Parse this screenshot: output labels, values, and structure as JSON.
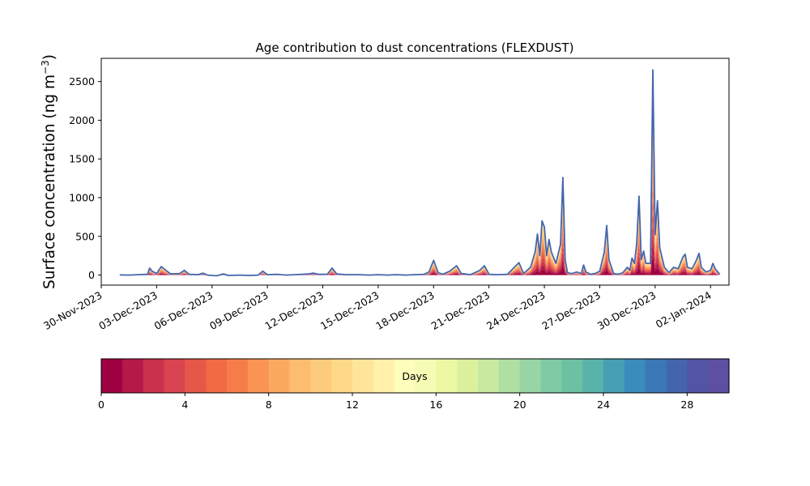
{
  "chart_data": {
    "type": "area",
    "title": "Age contribution to dust concentrations (FLEXDUST)",
    "ylabel": "Surface concentration (ng m",
    "ylabel_exp": "−3",
    "ylabel_close": ")",
    "xlabel": "",
    "ylim": [
      -130,
      2800
    ],
    "y_ticks": [
      0,
      500,
      1000,
      1500,
      2000,
      2500
    ],
    "x_range": [
      "2023-11-30T00:00",
      "2024-01-03T00:00"
    ],
    "x_ticks": [
      {
        "date": "2023-11-30",
        "label": "30-Nov-2023"
      },
      {
        "date": "2023-12-03",
        "label": "03-Dec-2023"
      },
      {
        "date": "2023-12-06",
        "label": "06-Dec-2023"
      },
      {
        "date": "2023-12-09",
        "label": "09-Dec-2023"
      },
      {
        "date": "2023-12-12",
        "label": "12-Dec-2023"
      },
      {
        "date": "2023-12-15",
        "label": "15-Dec-2023"
      },
      {
        "date": "2023-12-18",
        "label": "18-Dec-2023"
      },
      {
        "date": "2023-12-21",
        "label": "21-Dec-2023"
      },
      {
        "date": "2023-12-24",
        "label": "24-Dec-2023"
      },
      {
        "date": "2023-12-27",
        "label": "27-Dec-2023"
      },
      {
        "date": "2023-12-30",
        "label": "30-Dec-2023"
      },
      {
        "date": "2024-01-02",
        "label": "02-Jan-2024"
      }
    ],
    "total": [
      [
        "2023-12-01T00:00",
        2
      ],
      [
        "2023-12-01T12:00",
        0
      ],
      [
        "2023-12-02T00:00",
        5
      ],
      [
        "2023-12-02T12:00",
        10
      ],
      [
        "2023-12-02T15:00",
        90
      ],
      [
        "2023-12-02T18:00",
        50
      ],
      [
        "2023-12-03T00:00",
        20
      ],
      [
        "2023-12-03T06:00",
        110
      ],
      [
        "2023-12-03T12:00",
        60
      ],
      [
        "2023-12-03T18:00",
        15
      ],
      [
        "2023-12-04T06:00",
        20
      ],
      [
        "2023-12-04T12:00",
        60
      ],
      [
        "2023-12-04T18:00",
        10
      ],
      [
        "2023-12-05T06:00",
        5
      ],
      [
        "2023-12-05T12:00",
        25
      ],
      [
        "2023-12-05T18:00",
        0
      ],
      [
        "2023-12-06T06:00",
        -10
      ],
      [
        "2023-12-06T15:00",
        15
      ],
      [
        "2023-12-06T21:00",
        -5
      ],
      [
        "2023-12-07T12:00",
        0
      ],
      [
        "2023-12-08T00:00",
        -5
      ],
      [
        "2023-12-08T12:00",
        0
      ],
      [
        "2023-12-08T18:00",
        50
      ],
      [
        "2023-12-09T00:00",
        5
      ],
      [
        "2023-12-09T12:00",
        10
      ],
      [
        "2023-12-10T00:00",
        0
      ],
      [
        "2023-12-10T12:00",
        5
      ],
      [
        "2023-12-11T06:00",
        15
      ],
      [
        "2023-12-11T12:00",
        25
      ],
      [
        "2023-12-11T18:00",
        10
      ],
      [
        "2023-12-12T06:00",
        10
      ],
      [
        "2023-12-12T12:00",
        90
      ],
      [
        "2023-12-12T18:00",
        15
      ],
      [
        "2023-12-13T06:00",
        5
      ],
      [
        "2023-12-14T00:00",
        5
      ],
      [
        "2023-12-14T12:00",
        0
      ],
      [
        "2023-12-15T00:00",
        5
      ],
      [
        "2023-12-15T12:00",
        0
      ],
      [
        "2023-12-16T00:00",
        5
      ],
      [
        "2023-12-16T12:00",
        0
      ],
      [
        "2023-12-17T00:00",
        5
      ],
      [
        "2023-12-17T12:00",
        10
      ],
      [
        "2023-12-17T18:00",
        40
      ],
      [
        "2023-12-18T00:00",
        190
      ],
      [
        "2023-12-18T06:00",
        30
      ],
      [
        "2023-12-18T12:00",
        10
      ],
      [
        "2023-12-18T21:00",
        50
      ],
      [
        "2023-12-19T06:00",
        120
      ],
      [
        "2023-12-19T12:00",
        20
      ],
      [
        "2023-12-20T00:00",
        5
      ],
      [
        "2023-12-20T12:00",
        60
      ],
      [
        "2023-12-20T18:00",
        120
      ],
      [
        "2023-12-21T00:00",
        10
      ],
      [
        "2023-12-21T12:00",
        5
      ],
      [
        "2023-12-22T00:00",
        10
      ],
      [
        "2023-12-22T09:00",
        100
      ],
      [
        "2023-12-22T15:00",
        160
      ],
      [
        "2023-12-22T21:00",
        20
      ],
      [
        "2023-12-23T06:00",
        100
      ],
      [
        "2023-12-23T12:00",
        300
      ],
      [
        "2023-12-23T15:00",
        530
      ],
      [
        "2023-12-23T18:00",
        250
      ],
      [
        "2023-12-23T21:00",
        700
      ],
      [
        "2023-12-24T00:00",
        620
      ],
      [
        "2023-12-24T03:00",
        250
      ],
      [
        "2023-12-24T06:00",
        460
      ],
      [
        "2023-12-24T09:00",
        300
      ],
      [
        "2023-12-24T15:00",
        150
      ],
      [
        "2023-12-24T21:00",
        400
      ],
      [
        "2023-12-25T00:00",
        1260
      ],
      [
        "2023-12-25T03:00",
        200
      ],
      [
        "2023-12-25T06:00",
        30
      ],
      [
        "2023-12-25T12:00",
        20
      ],
      [
        "2023-12-25T18:00",
        40
      ],
      [
        "2023-12-26T00:00",
        20
      ],
      [
        "2023-12-26T03:00",
        130
      ],
      [
        "2023-12-26T06:00",
        40
      ],
      [
        "2023-12-26T12:00",
        10
      ],
      [
        "2023-12-26T18:00",
        20
      ],
      [
        "2023-12-27T00:00",
        50
      ],
      [
        "2023-12-27T06:00",
        300
      ],
      [
        "2023-12-27T09:00",
        640
      ],
      [
        "2023-12-27T12:00",
        200
      ],
      [
        "2023-12-27T18:00",
        20
      ],
      [
        "2023-12-28T00:00",
        10
      ],
      [
        "2023-12-28T06:00",
        30
      ],
      [
        "2023-12-28T12:00",
        100
      ],
      [
        "2023-12-28T15:00",
        60
      ],
      [
        "2023-12-28T18:00",
        220
      ],
      [
        "2023-12-28T21:00",
        150
      ],
      [
        "2023-12-29T00:00",
        400
      ],
      [
        "2023-12-29T03:00",
        1020
      ],
      [
        "2023-12-29T06:00",
        200
      ],
      [
        "2023-12-29T09:00",
        310
      ],
      [
        "2023-12-29T12:00",
        150
      ],
      [
        "2023-12-29T18:00",
        150
      ],
      [
        "2023-12-29T21:00",
        2650
      ],
      [
        "2023-12-30T00:00",
        520
      ],
      [
        "2023-12-30T03:00",
        960
      ],
      [
        "2023-12-30T06:00",
        350
      ],
      [
        "2023-12-30T12:00",
        100
      ],
      [
        "2023-12-30T18:00",
        30
      ],
      [
        "2023-12-31T00:00",
        100
      ],
      [
        "2023-12-31T06:00",
        80
      ],
      [
        "2023-12-31T12:00",
        230
      ],
      [
        "2023-12-31T15:00",
        270
      ],
      [
        "2023-12-31T18:00",
        100
      ],
      [
        "2024-01-01T00:00",
        80
      ],
      [
        "2024-01-01T06:00",
        200
      ],
      [
        "2024-01-01T09:00",
        280
      ],
      [
        "2024-01-01T12:00",
        100
      ],
      [
        "2024-01-01T18:00",
        40
      ],
      [
        "2024-01-02T00:00",
        60
      ],
      [
        "2024-01-02T03:00",
        150
      ],
      [
        "2024-01-02T06:00",
        80
      ],
      [
        "2024-01-02T12:00",
        10
      ]
    ]
  },
  "colorbar": {
    "label": "Days",
    "range": [
      0,
      30
    ],
    "ticks": [
      0,
      4,
      8,
      12,
      16,
      20,
      24,
      28
    ],
    "colors": [
      "#9e0142",
      "#b41947",
      "#c9314c",
      "#d84450",
      "#e55749",
      "#f06a44",
      "#f67d4a",
      "#f99455",
      "#fca960",
      "#fdbd6f",
      "#fdcb7c",
      "#fed98a",
      "#fee59a",
      "#fff0ab",
      "#fffdbc",
      "#f6fbb3",
      "#edf8a4",
      "#dbf19e",
      "#c8e99f",
      "#b0dfa2",
      "#98d5a5",
      "#80cba5",
      "#6cc1a4",
      "#59b3ab",
      "#479fb3",
      "#3a8cbc",
      "#3b78b7",
      "#4465ad",
      "#5255a4",
      "#5e4fa2"
    ]
  },
  "line_color": "#4565ad"
}
